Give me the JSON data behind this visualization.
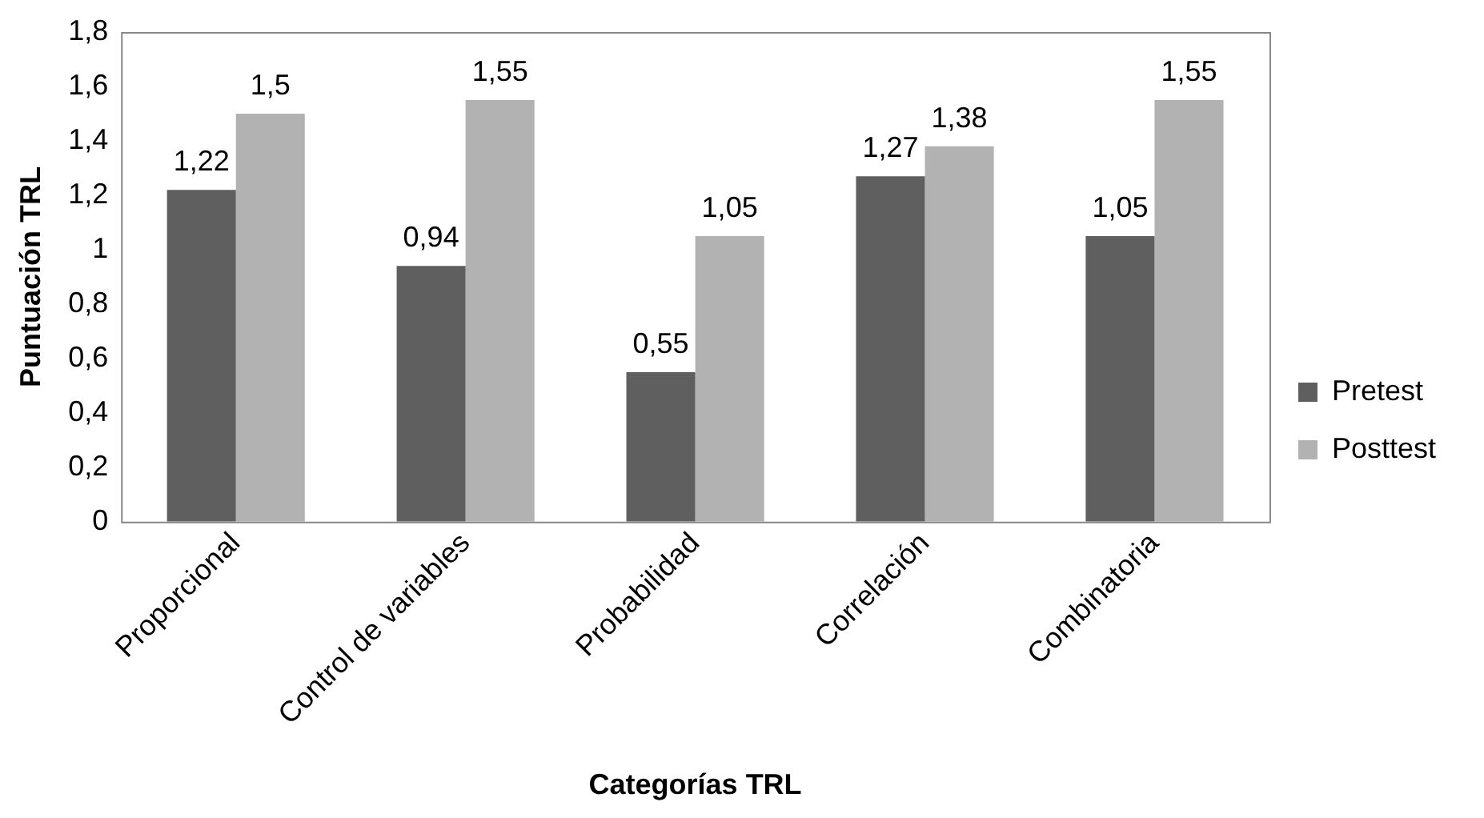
{
  "chart_data": {
    "type": "bar",
    "xlabel": "Categorías TRL",
    "ylabel": "Puntuación TRL",
    "categories": [
      "Proporcional",
      "Control de variables",
      "Probabilidad",
      "Correlación",
      "Combinatoria"
    ],
    "series": [
      {
        "name": "Pretest",
        "color": "#5f5f5f",
        "values": [
          1.22,
          0.94,
          0.55,
          1.27,
          1.05
        ],
        "value_labels": [
          "1,22",
          "0,94",
          "0,55",
          "1,27",
          "1,05"
        ]
      },
      {
        "name": "Posttest",
        "color": "#b2b2b2",
        "values": [
          1.5,
          1.55,
          1.05,
          1.38,
          1.55
        ],
        "value_labels": [
          "1,5",
          "1,55",
          "1,05",
          "1,38",
          "1,55"
        ]
      }
    ],
    "ylim": [
      0,
      1.8
    ],
    "yticks": [
      0,
      {
        "value": 0.2,
        "label": "0,2"
      },
      {
        "value": 0.4,
        "label": "0,4"
      },
      {
        "value": 0.6,
        "label": "0,6"
      },
      {
        "value": 0.8,
        "label": "0,8"
      },
      1,
      {
        "value": 1.2,
        "label": "1,2"
      },
      {
        "value": 1.4,
        "label": "1,4"
      },
      {
        "value": 1.6,
        "label": "1,6"
      },
      {
        "value": 1.8,
        "label": "1,8"
      }
    ],
    "grid": false,
    "legend": "right"
  }
}
